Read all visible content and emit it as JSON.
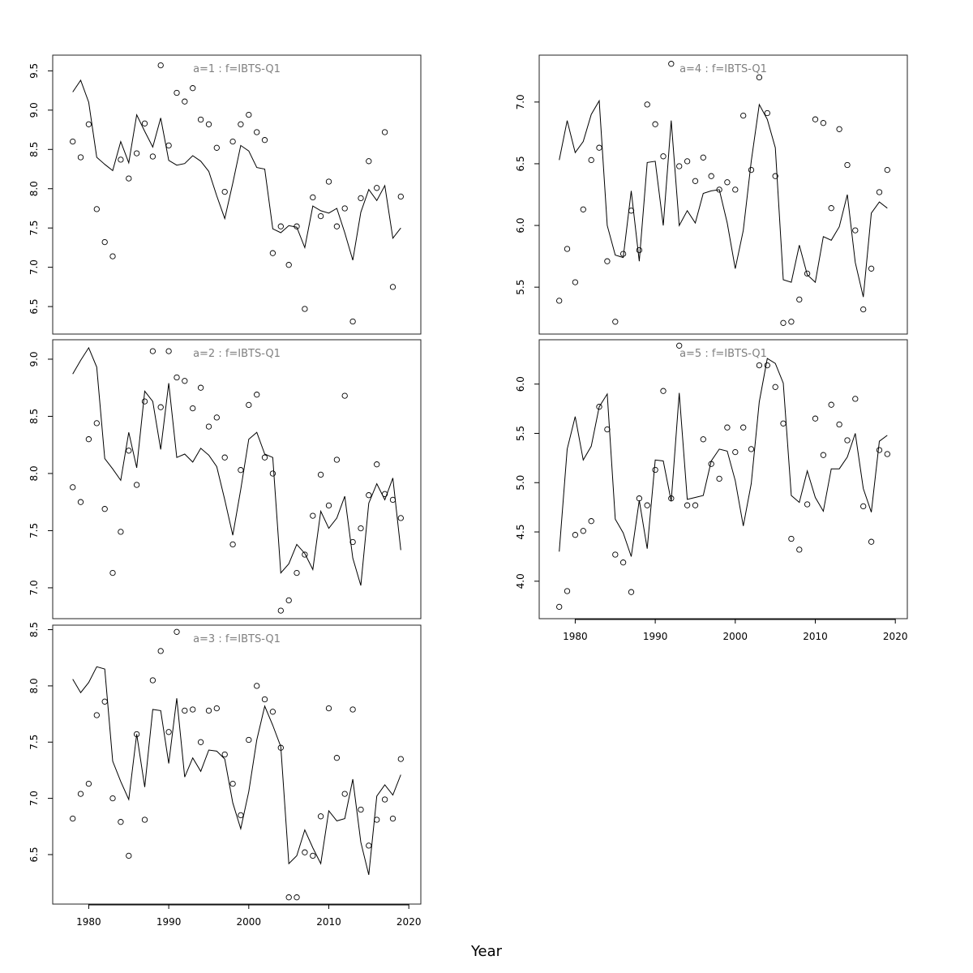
{
  "chart_data": {
    "type": "line",
    "xlabel": "Year",
    "x_ticks": [
      1980,
      1990,
      2000,
      2010,
      2020
    ],
    "xlim": [
      1975.5,
      2021.5
    ],
    "panels": [
      {
        "title": "a=1  :  f=IBTS-Q1",
        "ylim": [
          6.15,
          9.7
        ],
        "y_ticks": [
          "6.5",
          "7.0",
          "7.5",
          "8.0",
          "8.5",
          "9.0",
          "9.5"
        ],
        "series": [
          {
            "kind": "fitted",
            "x": [
              1978,
              1979,
              1980,
              1981,
              1982,
              1983,
              1984,
              1985,
              1986,
              1987,
              1988,
              1989,
              1990,
              1991,
              1992,
              1993,
              1994,
              1995,
              1996,
              1997,
              1998,
              1999,
              2000,
              2001,
              2002,
              2003,
              2004,
              2005,
              2006,
              2007,
              2008,
              2009,
              2010,
              2011,
              2012,
              2013,
              2014,
              2015,
              2016,
              2017,
              2018,
              2019
            ],
            "y": [
              9.23,
              9.38,
              9.1,
              8.4,
              8.31,
              8.23,
              8.6,
              8.33,
              8.94,
              8.73,
              8.53,
              8.9,
              8.36,
              8.3,
              8.32,
              8.42,
              8.35,
              8.22,
              7.91,
              7.62,
              8.07,
              8.55,
              8.48,
              8.27,
              8.25,
              7.49,
              7.44,
              7.53,
              7.51,
              7.25,
              7.78,
              7.72,
              7.69,
              7.75,
              7.44,
              7.09,
              7.7,
              7.99,
              7.85,
              8.04,
              7.37,
              7.5
            ]
          },
          {
            "kind": "observed",
            "x": [
              1978,
              1979,
              1980,
              1981,
              1982,
              1983,
              1984,
              1985,
              1986,
              1987,
              1988,
              1989,
              1990,
              1991,
              1992,
              1993,
              1994,
              1995,
              1996,
              1997,
              1998,
              1999,
              2000,
              2001,
              2002,
              2003,
              2004,
              2005,
              2006,
              2007,
              2008,
              2009,
              2010,
              2011,
              2012,
              2013,
              2014,
              2015,
              2016,
              2017,
              2018,
              2019
            ],
            "y": [
              8.6,
              8.4,
              8.82,
              7.74,
              7.32,
              7.14,
              8.37,
              8.13,
              8.45,
              8.83,
              8.41,
              9.57,
              8.55,
              9.22,
              9.11,
              9.28,
              8.88,
              8.82,
              8.52,
              7.96,
              8.6,
              8.82,
              8.94,
              8.72,
              8.62,
              7.18,
              7.52,
              7.03,
              7.52,
              6.47,
              7.89,
              7.65,
              8.09,
              7.52,
              7.75,
              6.31,
              7.88,
              8.35,
              8.01,
              8.72,
              6.75,
              7.9
            ]
          }
        ]
      },
      {
        "title": "a=4  :  f=IBTS-Q1",
        "ylim": [
          5.12,
          7.38
        ],
        "y_ticks": [
          "5.5",
          "6.0",
          "6.5",
          "7.0"
        ],
        "series": [
          {
            "kind": "fitted",
            "x": [
              1978,
              1979,
              1980,
              1981,
              1982,
              1983,
              1984,
              1985,
              1986,
              1987,
              1988,
              1989,
              1990,
              1991,
              1992,
              1993,
              1994,
              1995,
              1996,
              1997,
              1998,
              1999,
              2000,
              2001,
              2002,
              2003,
              2004,
              2005,
              2006,
              2007,
              2008,
              2009,
              2010,
              2011,
              2012,
              2013,
              2014,
              2015,
              2016,
              2017,
              2018,
              2019
            ],
            "y": [
              6.53,
              6.85,
              6.59,
              6.68,
              6.9,
              7.01,
              6.0,
              5.76,
              5.74,
              6.28,
              5.71,
              6.51,
              6.52,
              6.0,
              6.85,
              6.0,
              6.12,
              6.02,
              6.26,
              6.28,
              6.29,
              6.02,
              5.65,
              5.96,
              6.52,
              6.98,
              6.86,
              6.63,
              5.56,
              5.54,
              5.84,
              5.6,
              5.54,
              5.91,
              5.88,
              5.99,
              6.25,
              5.7,
              5.42,
              6.1,
              6.19,
              6.14
            ]
          },
          {
            "kind": "observed",
            "x": [
              1978,
              1979,
              1980,
              1981,
              1982,
              1983,
              1984,
              1985,
              1986,
              1987,
              1988,
              1989,
              1990,
              1991,
              1992,
              1993,
              1994,
              1995,
              1996,
              1997,
              1998,
              1999,
              2000,
              2001,
              2002,
              2003,
              2004,
              2005,
              2006,
              2007,
              2008,
              2009,
              2010,
              2011,
              2012,
              2013,
              2014,
              2015,
              2016,
              2017,
              2018,
              2019
            ],
            "y": [
              5.39,
              5.81,
              5.54,
              6.13,
              6.53,
              6.63,
              5.71,
              5.22,
              5.77,
              6.12,
              5.8,
              6.98,
              6.82,
              6.56,
              7.31,
              6.48,
              6.52,
              6.36,
              6.55,
              6.4,
              6.29,
              6.35,
              6.29,
              6.89,
              6.45,
              7.2,
              6.91,
              6.4,
              5.21,
              5.22,
              5.4,
              5.61,
              6.86,
              6.83,
              6.14,
              6.78,
              6.49,
              5.96,
              5.32,
              5.65,
              6.27,
              6.45
            ]
          }
        ]
      },
      {
        "title": "a=2  :  f=IBTS-Q1",
        "ylim": [
          6.73,
          9.17
        ],
        "y_ticks": [
          "7.0",
          "7.5",
          "8.0",
          "8.5",
          "9.0"
        ],
        "series": [
          {
            "kind": "fitted",
            "x": [
              1978,
              1979,
              1980,
              1981,
              1982,
              1983,
              1984,
              1985,
              1986,
              1987,
              1988,
              1989,
              1990,
              1991,
              1992,
              1993,
              1994,
              1995,
              1996,
              1997,
              1998,
              1999,
              2000,
              2001,
              2002,
              2003,
              2004,
              2005,
              2006,
              2007,
              2008,
              2009,
              2010,
              2011,
              2012,
              2013,
              2014,
              2015,
              2016,
              2017,
              2018,
              2019
            ],
            "y": [
              8.87,
              8.99,
              9.1,
              8.93,
              8.13,
              8.04,
              7.94,
              8.36,
              8.05,
              8.72,
              8.63,
              8.21,
              8.79,
              8.14,
              8.17,
              8.1,
              8.22,
              8.16,
              8.06,
              7.77,
              7.46,
              7.86,
              8.3,
              8.36,
              8.17,
              8.14,
              7.13,
              7.21,
              7.38,
              7.3,
              7.16,
              7.67,
              7.52,
              7.61,
              7.8,
              7.26,
              7.02,
              7.74,
              7.91,
              7.77,
              7.96,
              7.33
            ]
          },
          {
            "kind": "observed",
            "x": [
              1978,
              1979,
              1980,
              1981,
              1982,
              1983,
              1984,
              1985,
              1986,
              1987,
              1988,
              1989,
              1990,
              1991,
              1992,
              1993,
              1994,
              1995,
              1996,
              1997,
              1998,
              1999,
              2000,
              2001,
              2002,
              2003,
              2004,
              2005,
              2006,
              2007,
              2008,
              2009,
              2010,
              2011,
              2012,
              2013,
              2014,
              2015,
              2016,
              2017,
              2018,
              2019
            ],
            "y": [
              7.88,
              7.75,
              8.3,
              8.44,
              7.69,
              7.13,
              7.49,
              8.2,
              7.9,
              8.63,
              9.07,
              8.58,
              9.07,
              8.84,
              8.81,
              8.57,
              8.75,
              8.41,
              8.49,
              8.14,
              7.38,
              8.03,
              8.6,
              8.69,
              8.14,
              8.0,
              6.8,
              6.89,
              7.13,
              7.29,
              7.63,
              7.99,
              7.72,
              8.12,
              8.68,
              7.4,
              7.52,
              7.81,
              8.08,
              7.82,
              7.77,
              7.61
            ]
          }
        ]
      },
      {
        "title": "a=5  :  f=IBTS-Q1",
        "ylim": [
          3.62,
          6.45
        ],
        "y_ticks": [
          "4.0",
          "4.5",
          "5.0",
          "5.5",
          "6.0"
        ],
        "series": [
          {
            "kind": "fitted",
            "x": [
              1978,
              1979,
              1980,
              1981,
              1982,
              1983,
              1984,
              1985,
              1986,
              1987,
              1988,
              1989,
              1990,
              1991,
              1992,
              1993,
              1994,
              1995,
              1996,
              1997,
              1998,
              1999,
              2000,
              2001,
              2002,
              2003,
              2004,
              2005,
              2006,
              2007,
              2008,
              2009,
              2010,
              2011,
              2012,
              2013,
              2014,
              2015,
              2016,
              2017,
              2018,
              2019
            ],
            "y": [
              4.3,
              5.34,
              5.67,
              5.23,
              5.37,
              5.77,
              5.9,
              4.63,
              4.49,
              4.25,
              4.82,
              4.33,
              5.23,
              5.22,
              4.81,
              5.91,
              4.83,
              4.85,
              4.87,
              5.22,
              5.34,
              5.32,
              5.02,
              4.56,
              4.99,
              5.82,
              6.26,
              6.21,
              6.01,
              4.87,
              4.8,
              5.12,
              4.85,
              4.71,
              5.14,
              5.14,
              5.26,
              5.5,
              4.94,
              4.7,
              5.42,
              5.48
            ]
          },
          {
            "kind": "observed",
            "x": [
              1978,
              1979,
              1980,
              1981,
              1982,
              1983,
              1984,
              1985,
              1986,
              1987,
              1988,
              1989,
              1990,
              1991,
              1992,
              1993,
              1994,
              1995,
              1996,
              1997,
              1998,
              1999,
              2000,
              2001,
              2002,
              2003,
              2004,
              2005,
              2006,
              2007,
              2008,
              2009,
              2010,
              2011,
              2012,
              2013,
              2014,
              2015,
              2016,
              2017,
              2018,
              2019
            ],
            "y": [
              3.74,
              3.9,
              4.47,
              4.51,
              4.61,
              5.77,
              5.54,
              4.27,
              4.19,
              3.89,
              4.84,
              4.77,
              5.13,
              5.93,
              4.84,
              6.39,
              4.77,
              4.77,
              5.44,
              5.19,
              5.04,
              5.56,
              5.31,
              5.56,
              5.34,
              6.19,
              6.19,
              5.97,
              5.6,
              4.43,
              4.32,
              4.78,
              5.65,
              5.28,
              5.79,
              5.59,
              5.43,
              5.85,
              4.76,
              4.4,
              5.33,
              5.29
            ]
          }
        ]
      },
      {
        "title": "a=3  :  f=IBTS-Q1",
        "ylim": [
          6.06,
          8.54
        ],
        "y_ticks": [
          "6.5",
          "7.0",
          "7.5",
          "8.0",
          "8.5"
        ],
        "series": [
          {
            "kind": "fitted",
            "x": [
              1978,
              1979,
              1980,
              1981,
              1982,
              1983,
              1984,
              1985,
              1986,
              1987,
              1988,
              1989,
              1990,
              1991,
              1992,
              1993,
              1994,
              1995,
              1996,
              1997,
              1998,
              1999,
              2000,
              2001,
              2002,
              2003,
              2004,
              2005,
              2006,
              2007,
              2008,
              2009,
              2010,
              2011,
              2012,
              2013,
              2014,
              2015,
              2016,
              2017,
              2018,
              2019
            ],
            "y": [
              8.06,
              7.94,
              8.03,
              8.17,
              8.15,
              7.33,
              7.15,
              6.99,
              7.57,
              7.1,
              7.79,
              7.78,
              7.31,
              7.89,
              7.19,
              7.36,
              7.24,
              7.43,
              7.42,
              7.35,
              6.96,
              6.73,
              7.06,
              7.52,
              7.82,
              7.65,
              7.46,
              6.42,
              6.49,
              6.72,
              6.56,
              6.42,
              6.89,
              6.8,
              6.82,
              7.17,
              6.61,
              6.32,
              7.02,
              7.12,
              7.03,
              7.21
            ]
          },
          {
            "kind": "observed",
            "x": [
              1978,
              1979,
              1980,
              1981,
              1982,
              1983,
              1984,
              1985,
              1986,
              1987,
              1988,
              1989,
              1990,
              1991,
              1992,
              1993,
              1994,
              1995,
              1996,
              1997,
              1998,
              1999,
              2000,
              2001,
              2002,
              2003,
              2004,
              2005,
              2006,
              2007,
              2008,
              2009,
              2010,
              2011,
              2012,
              2013,
              2014,
              2015,
              2016,
              2017,
              2018,
              2019
            ],
            "y": [
              6.82,
              7.04,
              7.13,
              7.74,
              7.86,
              7.0,
              6.79,
              6.49,
              7.57,
              6.81,
              8.05,
              8.31,
              7.59,
              8.48,
              7.78,
              7.79,
              7.5,
              7.78,
              7.8,
              7.39,
              7.13,
              6.85,
              7.52,
              8.0,
              7.88,
              7.77,
              7.45,
              6.12,
              6.12,
              6.52,
              6.49,
              6.84,
              7.8,
              7.36,
              7.04,
              7.79,
              6.9,
              6.58,
              6.81,
              6.99,
              6.82,
              7.35
            ]
          }
        ]
      }
    ]
  }
}
